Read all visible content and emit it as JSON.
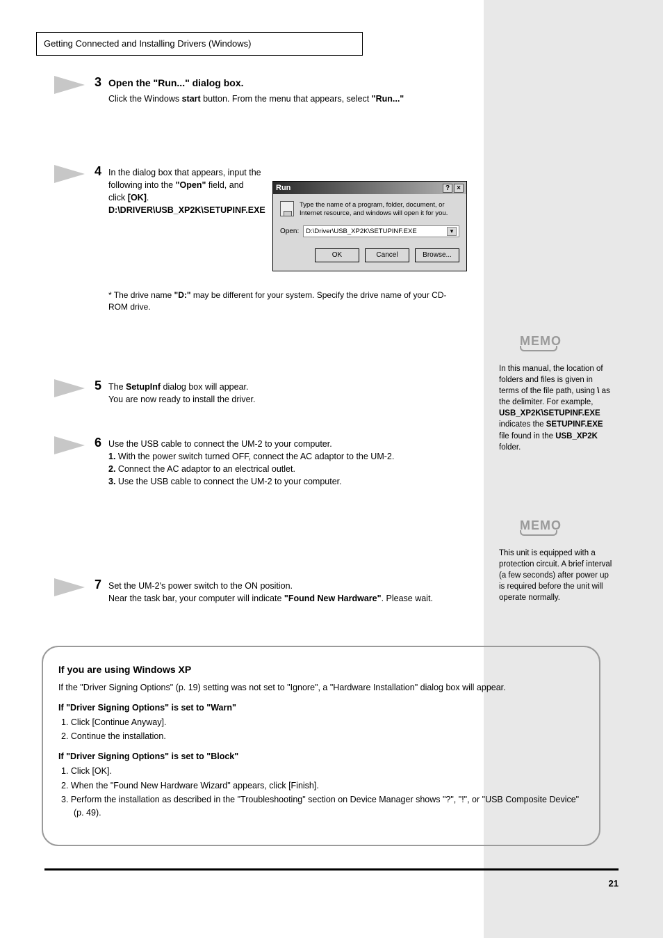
{
  "header": "Getting Connected and Installing Drivers (Windows)",
  "steps": [
    {
      "num": "3",
      "title": "Open the \"Run...\" dialog box.",
      "body_html": "Click the Windows <b>start</b> button. From the menu that appears, select <b>\"Run...\"</b>"
    },
    {
      "num": "4",
      "title": "",
      "body_html": "In the dialog box that appears, input the following into the <b>\"Open\"</b> field, and click <b>[OK]</b>.<br><b>D:\\DRIVER\\USB_XP2K\\SETUPINF.EXE</b>",
      "star": "* The drive name <b>\"D:\"</b> may be different for your system. Specify the drive name of your CD-ROM drive."
    },
    {
      "num": "5",
      "title": "",
      "body_html": "The <b>SetupInf</b> dialog box will appear.<br>You are now ready to install the driver."
    },
    {
      "num": "6",
      "title": "",
      "body_html": "Use the USB cable to connect the UM-2 to your computer.<br><b>1.</b> With the power switch turned OFF, connect the AC adaptor to the UM-2.<br><b>2.</b> Connect the AC adaptor to an electrical outlet.<br><b>3.</b> Use the USB cable to connect the UM-2 to your computer."
    },
    {
      "num": "7",
      "title": "",
      "body_html": "Set the UM-2's power switch to the ON position.<br>Near the task bar, your computer will indicate <b>\"Found New Hardware\"</b>. Please wait."
    }
  ],
  "run_dialog": {
    "title": "Run",
    "message": "Type the name of a program, folder, document, or Internet resource, and windows will open it for you.",
    "open_label": "Open:",
    "input_value": "D:\\Driver\\USB_XP2K\\SETUPINF.EXE",
    "buttons": {
      "ok": "OK",
      "cancel": "Cancel",
      "browse": "Browse..."
    }
  },
  "memos": [
    {
      "label": "MEMO",
      "text": "In this manual, the location of folders and files is given in terms of the file path, using <b>\\</b> as the delimiter. For example, <b>USB_XP2K\\SETUPINF.EXE</b> indicates the <b>SETUPINF.EXE</b> file found in the <b>USB_XP2K</b> folder."
    },
    {
      "label": "MEMO",
      "text": "This unit is equipped with a protection circuit. A brief interval (a few seconds) after power up is required before the unit will operate normally."
    }
  ],
  "callout": {
    "title": "If you are using Windows XP",
    "intro": "If the \"Driver Signing Options\" (p. 19) setting was not set to \"Ignore\", a \"Hardware Installation\" dialog box will appear.",
    "case1_title": "If \"Driver Signing Options\" is set to \"Warn\"",
    "case1_steps": [
      "1. Click [Continue Anyway].",
      "2. Continue the installation."
    ],
    "case2_title": "If \"Driver Signing Options\" is set to \"Block\"",
    "case2_steps": [
      "1. Click [OK].",
      "2. When the \"Found New Hardware Wizard\" appears, click [Finish].",
      "3. Perform the installation as described in the \"Troubleshooting\" section on Device Manager shows \"?\", \"!\", or \"USB Composite Device\" (p. 49)."
    ]
  },
  "page_number": "21",
  "colors": {
    "band": "#e8e8e8",
    "arrow": "#c7c7c7",
    "memo": "#9a9a9a",
    "text": "#000000"
  }
}
